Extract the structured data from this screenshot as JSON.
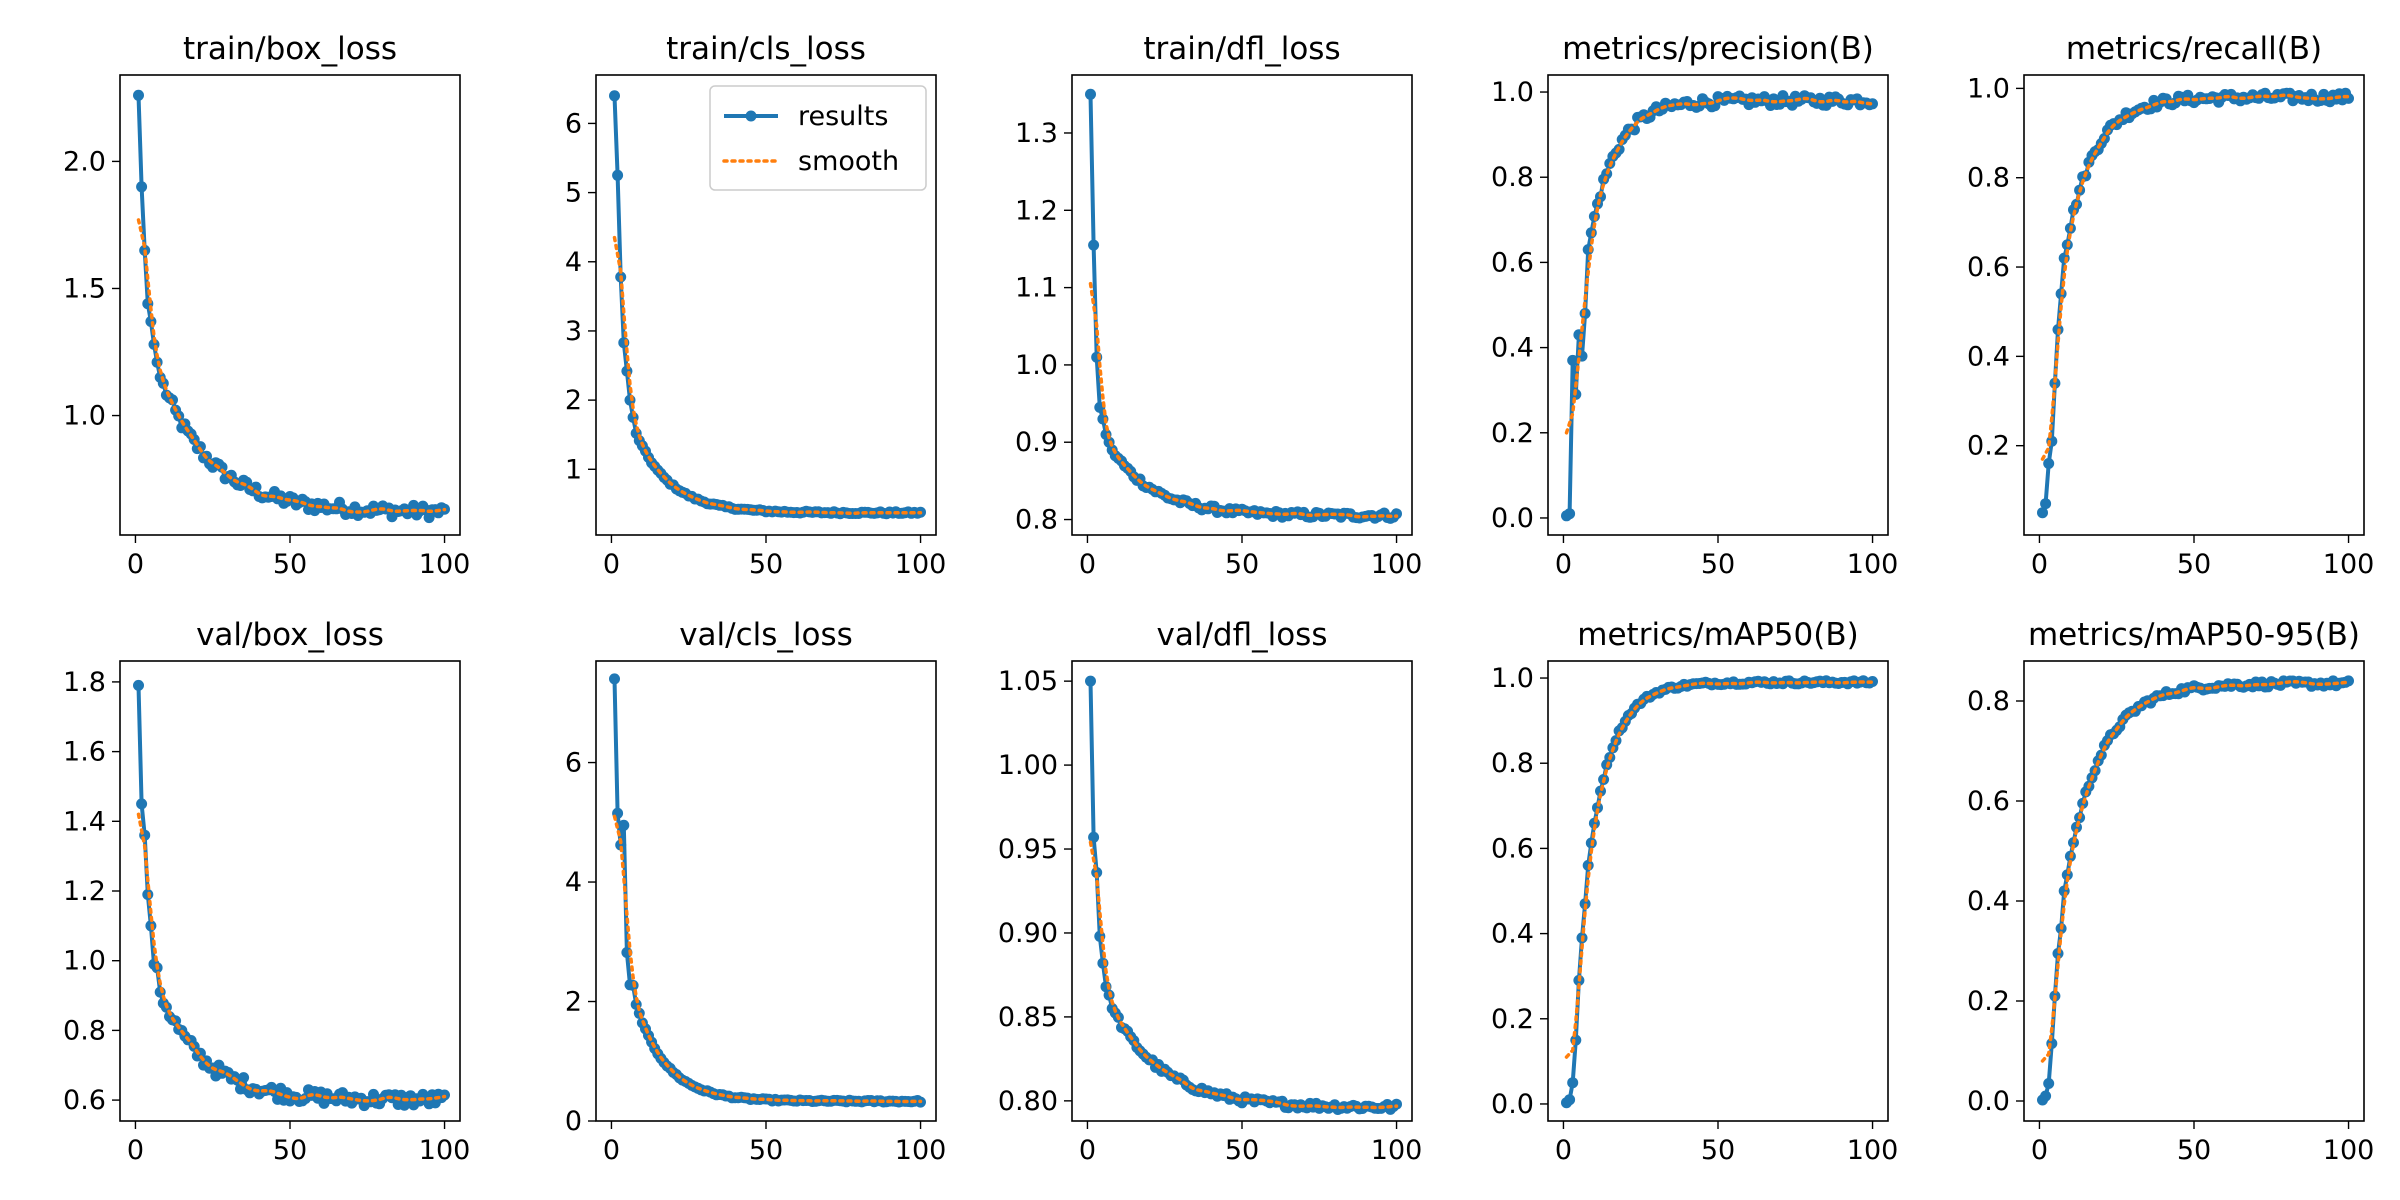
{
  "figure": {
    "legend": {
      "results_label": "results",
      "smooth_label": "smooth",
      "placement": "top-right of train/cls_loss"
    },
    "colors": {
      "results": "#1f77b4",
      "smooth": "#ff7f0e",
      "axis": "#000000",
      "background": "#ffffff"
    }
  },
  "chart_data": [
    {
      "type": "line",
      "title": "train/box_loss",
      "xlim": [
        -5,
        105
      ],
      "ylim": [
        0.53,
        2.34
      ],
      "xticks": [
        0,
        50,
        100
      ],
      "yticks": [
        1.0,
        1.5,
        2.0
      ],
      "ytick_labels": [
        "1.0",
        "1.5",
        "2.0"
      ],
      "shape": "decay",
      "start": [
        2.26,
        1.9,
        1.65,
        1.44,
        1.37,
        1.28,
        1.21,
        1.15
      ],
      "end": 0.62,
      "k": 0.06,
      "noise": 0.025,
      "smooth_start": 1.77,
      "series": [
        {
          "name": "results"
        },
        {
          "name": "smooth"
        }
      ]
    },
    {
      "type": "line",
      "title": "train/cls_loss",
      "xlim": [
        -5,
        105
      ],
      "ylim": [
        0.05,
        6.7
      ],
      "xticks": [
        0,
        50,
        100
      ],
      "yticks": [
        1,
        2,
        3,
        4,
        5,
        6
      ],
      "ytick_labels": [
        "1",
        "2",
        "3",
        "4",
        "5",
        "6"
      ],
      "shape": "decay",
      "start": [
        6.4,
        5.25,
        3.78,
        2.83,
        2.42,
        2.0,
        1.75,
        1.52
      ],
      "end": 0.37,
      "k": 0.09,
      "noise": 0.015,
      "smooth_start": 4.35,
      "legend": true,
      "series": [
        {
          "name": "results"
        },
        {
          "name": "smooth"
        }
      ]
    },
    {
      "type": "line",
      "title": "train/dfl_loss",
      "xlim": [
        -5,
        105
      ],
      "ylim": [
        0.78,
        1.375
      ],
      "xticks": [
        0,
        50,
        100
      ],
      "yticks": [
        0.8,
        0.9,
        1.0,
        1.1,
        1.2,
        1.3
      ],
      "ytick_labels": [
        "0.8",
        "0.9",
        "1.0",
        "1.1",
        "1.2",
        "1.3"
      ],
      "shape": "decay",
      "start": [
        1.35,
        1.155,
        1.01,
        0.945,
        0.93,
        0.91,
        0.9,
        0.89
      ],
      "end": 0.805,
      "k": 0.07,
      "noise": 0.004,
      "smooth_start": 1.105,
      "series": [
        {
          "name": "results"
        },
        {
          "name": "smooth"
        }
      ]
    },
    {
      "type": "line",
      "title": "metrics/precision(B)",
      "xlim": [
        -5,
        105
      ],
      "ylim": [
        -0.04,
        1.04
      ],
      "xticks": [
        0,
        50,
        100
      ],
      "yticks": [
        0.0,
        0.2,
        0.4,
        0.6,
        0.8,
        1.0
      ],
      "ytick_labels": [
        "0.0",
        "0.2",
        "0.4",
        "0.6",
        "0.8",
        "1.0"
      ],
      "shape": "rise",
      "start": [
        0.005,
        0.01,
        0.37,
        0.29,
        0.43,
        0.38,
        0.48,
        0.63
      ],
      "end": 0.98,
      "k": 0.12,
      "noise": 0.012,
      "smooth_start": 0.2,
      "series": [
        {
          "name": "results"
        },
        {
          "name": "smooth"
        }
      ]
    },
    {
      "type": "line",
      "title": "metrics/recall(B)",
      "xlim": [
        -5,
        105
      ],
      "ylim": [
        0.0,
        1.03
      ],
      "xticks": [
        0,
        50,
        100
      ],
      "yticks": [
        0.2,
        0.4,
        0.6,
        0.8,
        1.0
      ],
      "ytick_labels": [
        "0.2",
        "0.4",
        "0.6",
        "0.8",
        "1.0"
      ],
      "shape": "rise",
      "start": [
        0.05,
        0.07,
        0.16,
        0.21,
        0.34,
        0.46,
        0.54,
        0.62
      ],
      "end": 0.98,
      "k": 0.11,
      "noise": 0.01,
      "smooth_start": 0.17,
      "series": [
        {
          "name": "results"
        },
        {
          "name": "smooth"
        }
      ]
    },
    {
      "type": "line",
      "title": "val/box_loss",
      "xlim": [
        -5,
        105
      ],
      "ylim": [
        0.54,
        1.86
      ],
      "xticks": [
        0,
        50,
        100
      ],
      "yticks": [
        0.6,
        0.8,
        1.0,
        1.2,
        1.4,
        1.6,
        1.8
      ],
      "ytick_labels": [
        "0.6",
        "0.8",
        "1.0",
        "1.2",
        "1.4",
        "1.6",
        "1.8"
      ],
      "shape": "decay",
      "start": [
        1.79,
        1.45,
        1.36,
        1.19,
        1.1,
        0.99,
        0.98,
        0.91
      ],
      "end": 0.6,
      "k": 0.07,
      "noise": 0.02,
      "smooth_start": 1.42,
      "series": [
        {
          "name": "results"
        },
        {
          "name": "smooth"
        }
      ]
    },
    {
      "type": "line",
      "title": "val/cls_loss",
      "xlim": [
        -5,
        105
      ],
      "ylim": [
        0.0,
        7.7
      ],
      "xticks": [
        0,
        50,
        100
      ],
      "yticks": [
        0,
        2,
        4,
        6
      ],
      "ytick_labels": [
        "0",
        "2",
        "4",
        "6"
      ],
      "shape": "decay",
      "start": [
        7.4,
        5.15,
        4.62,
        4.95,
        2.82,
        2.28,
        2.27,
        1.95
      ],
      "end": 0.33,
      "k": 0.1,
      "noise": 0.015,
      "smooth_start": 5.1,
      "series": [
        {
          "name": "results"
        },
        {
          "name": "smooth"
        }
      ]
    },
    {
      "type": "line",
      "title": "val/dfl_loss",
      "xlim": [
        -5,
        105
      ],
      "ylim": [
        0.788,
        1.062
      ],
      "xticks": [
        0,
        50,
        100
      ],
      "yticks": [
        0.8,
        0.85,
        0.9,
        0.95,
        1.0,
        1.05
      ],
      "ytick_labels": [
        "0.80",
        "0.85",
        "0.90",
        "0.95",
        "1.00",
        "1.05"
      ],
      "shape": "decay",
      "start": [
        1.05,
        0.957,
        0.936,
        0.898,
        0.882,
        0.868,
        0.863,
        0.855
      ],
      "end": 0.796,
      "k": 0.06,
      "noise": 0.002,
      "smooth_start": 0.954,
      "series": [
        {
          "name": "results"
        },
        {
          "name": "smooth"
        }
      ]
    },
    {
      "type": "line",
      "title": "metrics/mAP50(B)",
      "xlim": [
        -5,
        105
      ],
      "ylim": [
        -0.04,
        1.04
      ],
      "xticks": [
        0,
        50,
        100
      ],
      "yticks": [
        0.0,
        0.2,
        0.4,
        0.6,
        0.8,
        1.0
      ],
      "ytick_labels": [
        "0.0",
        "0.2",
        "0.4",
        "0.6",
        "0.8",
        "1.0"
      ],
      "shape": "rise",
      "start": [
        0.003,
        0.01,
        0.05,
        0.15,
        0.29,
        0.39,
        0.47,
        0.56
      ],
      "end": 0.99,
      "k": 0.13,
      "noise": 0.004,
      "smooth_start": 0.11,
      "series": [
        {
          "name": "results"
        },
        {
          "name": "smooth"
        }
      ]
    },
    {
      "type": "line",
      "title": "metrics/mAP50-95(B)",
      "xlim": [
        -5,
        105
      ],
      "ylim": [
        -0.04,
        0.88
      ],
      "xticks": [
        0,
        50,
        100
      ],
      "yticks": [
        0.0,
        0.2,
        0.4,
        0.6,
        0.8
      ],
      "ytick_labels": [
        "0.0",
        "0.2",
        "0.4",
        "0.6",
        "0.8"
      ],
      "shape": "rise",
      "start": [
        0.002,
        0.01,
        0.035,
        0.115,
        0.21,
        0.295,
        0.345,
        0.42
      ],
      "end": 0.835,
      "k": 0.09,
      "noise": 0.006,
      "smooth_start": 0.08,
      "series": [
        {
          "name": "results"
        },
        {
          "name": "smooth"
        }
      ]
    }
  ]
}
